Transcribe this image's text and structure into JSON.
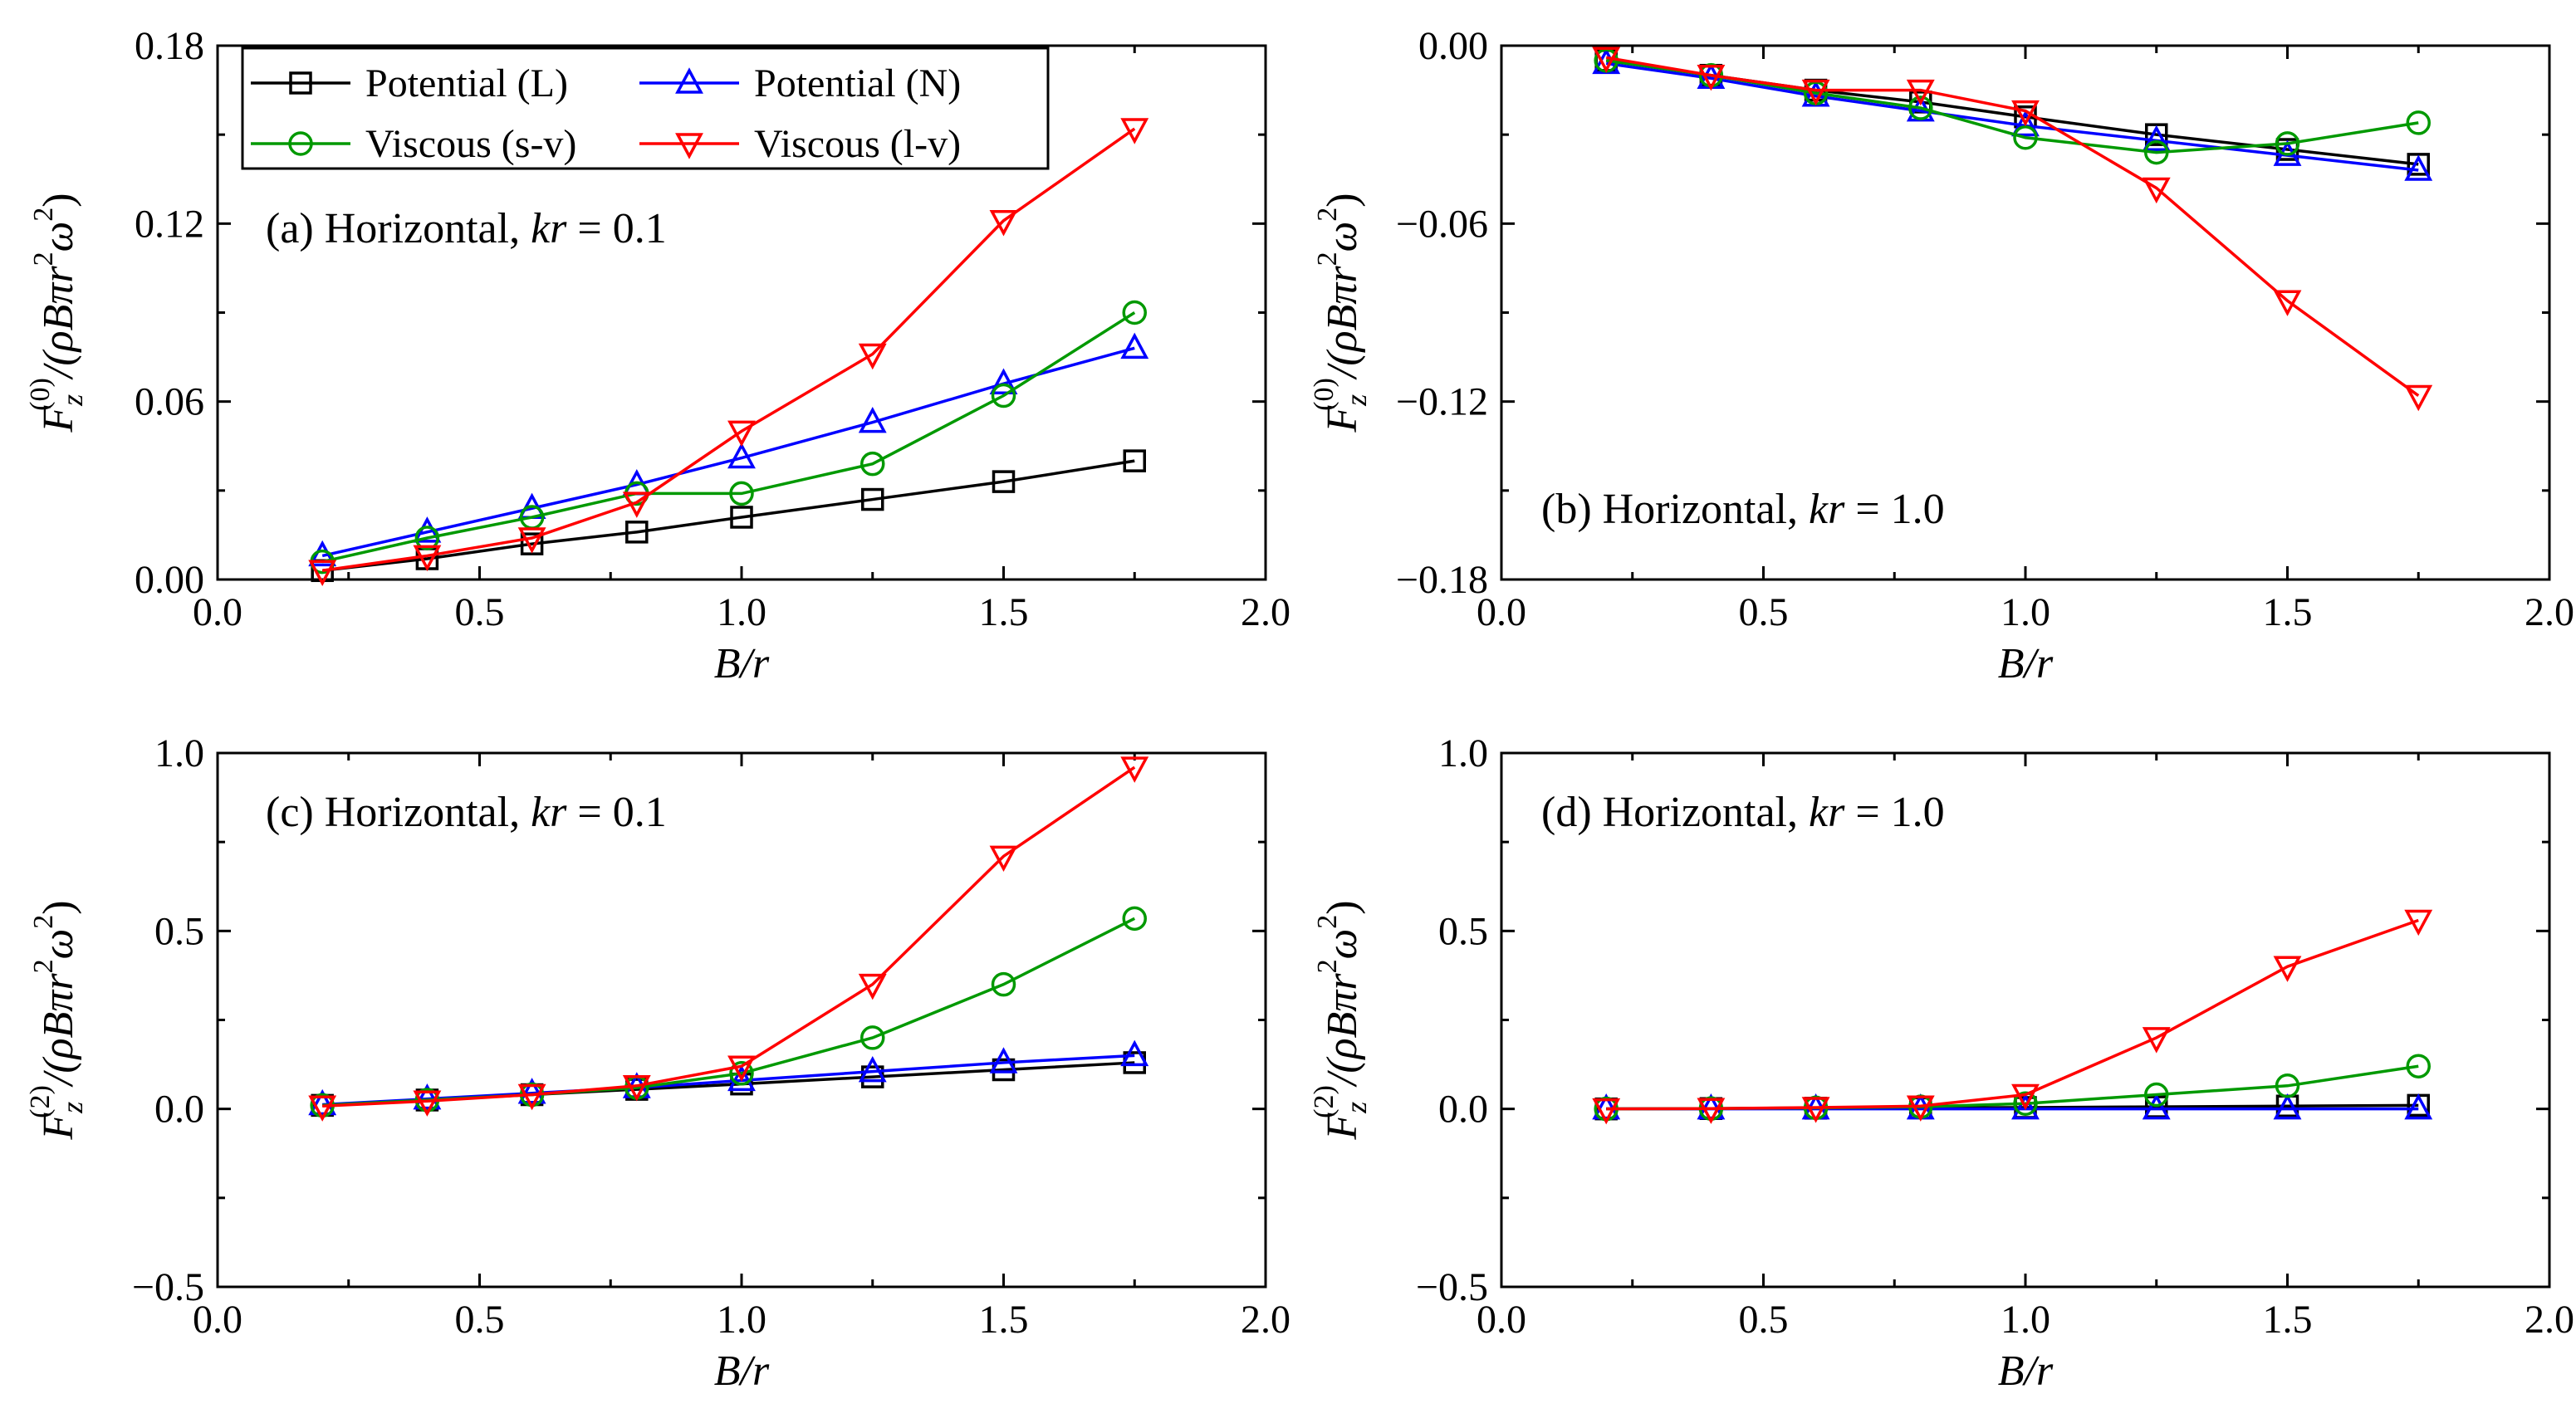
{
  "colors": {
    "Potential (L)": "#000000",
    "Potential (N)": "#0000ff",
    "Viscous (s-v)": "#009900",
    "Viscous (l-v)": "#ff0000"
  },
  "legend": {
    "entries": [
      {
        "name": "Potential (L)",
        "marker": "square"
      },
      {
        "name": "Potential (N)",
        "marker": "triangle-up"
      },
      {
        "name": "Viscous (s-v)",
        "marker": "circle"
      },
      {
        "name": "Viscous (l-v)",
        "marker": "triangle-down"
      }
    ]
  },
  "chart_data": [
    {
      "type": "line",
      "title": "(a) Horizontal, kr = 0.1",
      "title_parts": [
        "(a) Horizontal, ",
        "kr",
        " = 0.1"
      ],
      "xlabel": "B/r",
      "ylabel": {
        "F": "F",
        "sup": "(0)",
        "sub": "z",
        "rest1": "/(ρBπr",
        "sup2": "2",
        "rest2": "ω",
        "sup3": "2",
        "rest3": ")"
      },
      "xlim": [
        0.0,
        2.0
      ],
      "ylim": [
        0.0,
        0.18
      ],
      "xticks": [
        0.0,
        0.5,
        1.0,
        1.5,
        2.0
      ],
      "xtick_labels": [
        "0.0",
        "0.5",
        "1.0",
        "1.5",
        "2.0"
      ],
      "yticks": [
        0.0,
        0.06,
        0.12,
        0.18
      ],
      "ytick_labels": [
        "0.00",
        "0.06",
        "0.12",
        "0.18"
      ],
      "x": [
        0.2,
        0.4,
        0.6,
        0.8,
        1.0,
        1.25,
        1.5,
        1.75
      ],
      "series": [
        {
          "name": "Potential (L)",
          "values": [
            0.003,
            0.007,
            0.012,
            0.016,
            0.021,
            0.027,
            0.033,
            0.04
          ]
        },
        {
          "name": "Potential (N)",
          "values": [
            0.008,
            0.016,
            0.024,
            0.032,
            0.041,
            0.053,
            0.066,
            0.078
          ]
        },
        {
          "name": "Viscous (s-v)",
          "values": [
            0.006,
            0.014,
            0.021,
            0.029,
            0.029,
            0.039,
            0.062,
            0.09
          ]
        },
        {
          "name": "Viscous (l-v)",
          "values": [
            0.003,
            0.008,
            0.014,
            0.026,
            0.05,
            0.076,
            0.121,
            0.152
          ]
        }
      ]
    },
    {
      "type": "line",
      "title": "(b) Horizontal, kr = 1.0",
      "title_parts": [
        "(b) Horizontal, ",
        "kr",
        " = 1.0"
      ],
      "xlabel": "B/r",
      "ylabel": {
        "F": "F",
        "sup": "(0)",
        "sub": "z",
        "rest1": "/(ρBπr",
        "sup2": "2",
        "rest2": "ω",
        "sup3": "2",
        "rest3": ")"
      },
      "xlim": [
        0.0,
        2.0
      ],
      "ylim": [
        -0.18,
        0.0
      ],
      "xticks": [
        0.0,
        0.5,
        1.0,
        1.5,
        2.0
      ],
      "xtick_labels": [
        "0.0",
        "0.5",
        "1.0",
        "1.5",
        "2.0"
      ],
      "yticks": [
        0.0,
        -0.06,
        -0.12,
        -0.18
      ],
      "ytick_labels": [
        "0.00",
        "−0.06",
        "−0.12",
        "−0.18"
      ],
      "x": [
        0.2,
        0.4,
        0.6,
        0.8,
        1.0,
        1.25,
        1.5,
        1.75
      ],
      "series": [
        {
          "name": "Potential (L)",
          "values": [
            -0.005,
            -0.01,
            -0.015,
            -0.019,
            -0.024,
            -0.03,
            -0.035,
            -0.04
          ]
        },
        {
          "name": "Potential (N)",
          "values": [
            -0.006,
            -0.011,
            -0.017,
            -0.022,
            -0.027,
            -0.032,
            -0.037,
            -0.042
          ]
        },
        {
          "name": "Viscous (s-v)",
          "values": [
            -0.005,
            -0.01,
            -0.016,
            -0.021,
            -0.031,
            -0.036,
            -0.033,
            -0.026
          ]
        },
        {
          "name": "Viscous (l-v)",
          "values": [
            -0.004,
            -0.01,
            -0.015,
            -0.015,
            -0.022,
            -0.048,
            -0.086,
            -0.118
          ]
        }
      ]
    },
    {
      "type": "line",
      "title": "(c) Horizontal, kr = 0.1",
      "title_parts": [
        "(c) Horizontal, ",
        "kr",
        " = 0.1"
      ],
      "xlabel": "B/r",
      "ylabel": {
        "F": "F",
        "sup": "(2)",
        "sub": "z",
        "rest1": "/(ρBπr",
        "sup2": "2",
        "rest2": "ω",
        "sup3": "2",
        "rest3": ")"
      },
      "xlim": [
        0.0,
        2.0
      ],
      "ylim": [
        -0.5,
        1.0
      ],
      "xticks": [
        0.0,
        0.5,
        1.0,
        1.5,
        2.0
      ],
      "xtick_labels": [
        "0.0",
        "0.5",
        "1.0",
        "1.5",
        "2.0"
      ],
      "yticks": [
        -0.5,
        0.0,
        0.5,
        1.0
      ],
      "ytick_labels": [
        "−0.5",
        "0.0",
        "0.5",
        "1.0"
      ],
      "x": [
        0.2,
        0.4,
        0.6,
        0.8,
        1.0,
        1.25,
        1.5,
        1.75
      ],
      "series": [
        {
          "name": "Potential (L)",
          "values": [
            0.01,
            0.025,
            0.04,
            0.055,
            0.07,
            0.09,
            0.11,
            0.13
          ]
        },
        {
          "name": "Potential (N)",
          "values": [
            0.012,
            0.028,
            0.044,
            0.06,
            0.08,
            0.105,
            0.13,
            0.15
          ]
        },
        {
          "name": "Viscous (s-v)",
          "values": [
            0.01,
            0.025,
            0.04,
            0.06,
            0.1,
            0.2,
            0.35,
            0.535
          ]
        },
        {
          "name": "Viscous (l-v)",
          "values": [
            0.008,
            0.022,
            0.04,
            0.065,
            0.12,
            0.35,
            0.71,
            0.96
          ]
        }
      ]
    },
    {
      "type": "line",
      "title": "(d) Horizontal, kr = 1.0",
      "title_parts": [
        "(d) Horizontal, ",
        "kr",
        " = 1.0"
      ],
      "xlabel": "B/r",
      "ylabel": {
        "F": "F",
        "sup": "(2)",
        "sub": "z",
        "rest1": "/(ρBπr",
        "sup2": "2",
        "rest2": "ω",
        "sup3": "2",
        "rest3": ")"
      },
      "xlim": [
        0.0,
        2.0
      ],
      "ylim": [
        -0.5,
        1.0
      ],
      "xticks": [
        0.0,
        0.5,
        1.0,
        1.5,
        2.0
      ],
      "xtick_labels": [
        "0.0",
        "0.5",
        "1.0",
        "1.5",
        "2.0"
      ],
      "yticks": [
        -0.5,
        0.0,
        0.5,
        1.0
      ],
      "ytick_labels": [
        "−0.5",
        "0.0",
        "0.5",
        "1.0"
      ],
      "x": [
        0.2,
        0.4,
        0.6,
        0.8,
        1.0,
        1.25,
        1.5,
        1.75
      ],
      "series": [
        {
          "name": "Potential (L)",
          "values": [
            0.0,
            0.001,
            0.002,
            0.003,
            0.004,
            0.006,
            0.008,
            0.01
          ]
        },
        {
          "name": "Potential (N)",
          "values": [
            0.0,
            0.0,
            0.0,
            0.0,
            0.0,
            0.0,
            0.0,
            0.0
          ]
        },
        {
          "name": "Viscous (s-v)",
          "values": [
            0.0,
            0.001,
            0.003,
            0.006,
            0.015,
            0.04,
            0.065,
            0.12
          ]
        },
        {
          "name": "Viscous (l-v)",
          "values": [
            0.0,
            0.001,
            0.004,
            0.008,
            0.04,
            0.2,
            0.4,
            0.53
          ]
        }
      ]
    }
  ]
}
